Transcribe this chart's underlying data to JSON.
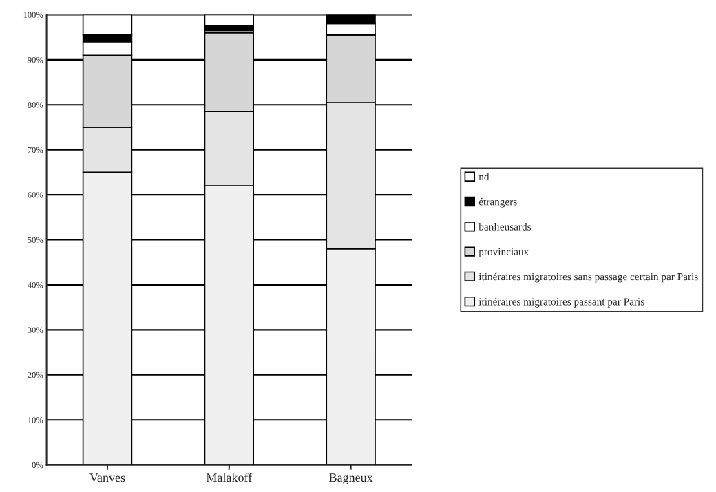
{
  "chart_data": {
    "type": "bar",
    "stacked": true,
    "categories": [
      "Vanves",
      "Malakoff",
      "Bagneux"
    ],
    "series": [
      {
        "name": "itinéraires migratoires passant par Paris",
        "color": "#f0f0f0",
        "values": [
          65,
          62,
          48
        ]
      },
      {
        "name": "itinéraires migratoires sans passage certain par Paris",
        "color": "#e4e4e4",
        "values": [
          10,
          16.5,
          32.5
        ]
      },
      {
        "name": "provinciaux",
        "color": "#d6d6d6",
        "values": [
          16,
          17.5,
          15
        ]
      },
      {
        "name": "banlieusards",
        "color": "#ffffff",
        "values": [
          3,
          0.5,
          2.5
        ]
      },
      {
        "name": "étrangers",
        "color": "#000000",
        "values": [
          1.5,
          1,
          2
        ]
      },
      {
        "name": "nd",
        "color": "#ffffff",
        "values": [
          4.5,
          2.5,
          0
        ]
      }
    ],
    "ylim": [
      0,
      100
    ],
    "yticks": [
      {
        "value": 0,
        "label": "0%"
      },
      {
        "value": 10,
        "label": "10%"
      },
      {
        "value": 20,
        "label": "20%"
      },
      {
        "value": 30,
        "label": "30%"
      },
      {
        "value": 40,
        "label": "40%"
      },
      {
        "value": 50,
        "label": "50%"
      },
      {
        "value": 60,
        "label": "60%"
      },
      {
        "value": 70,
        "label": "70%"
      },
      {
        "value": 80,
        "label": "80%"
      },
      {
        "value": 90,
        "label": "90%"
      },
      {
        "value": 100,
        "label": "100%"
      }
    ],
    "grid": "y",
    "legend": "right"
  }
}
